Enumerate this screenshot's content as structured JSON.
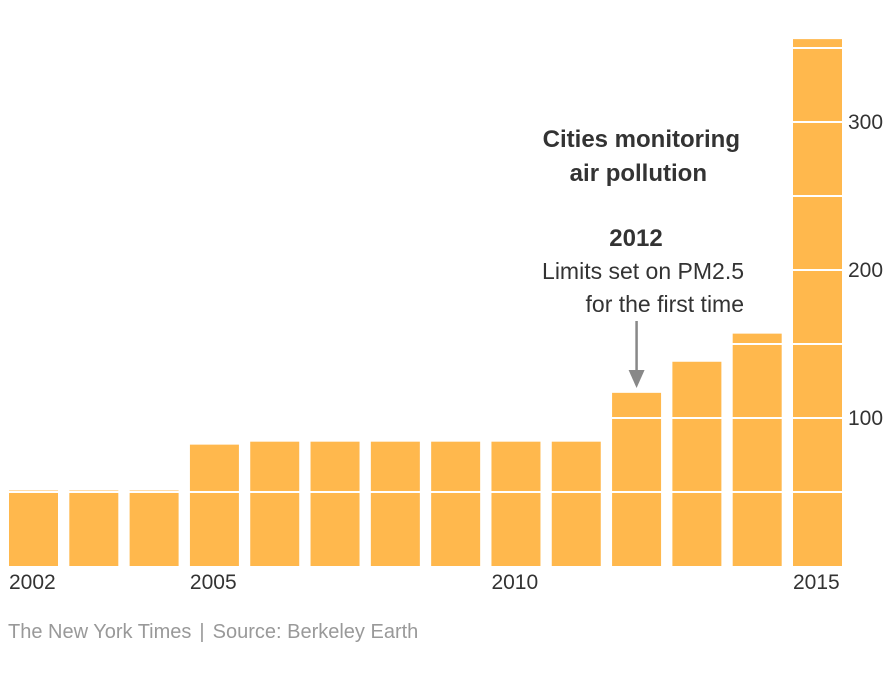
{
  "chart_data": {
    "type": "bar",
    "title": "Cities monitoring air pollution",
    "title_lines": [
      "Cities monitoring",
      "air pollution"
    ],
    "categories": [
      "2002",
      "2003",
      "2004",
      "2005",
      "2006",
      "2007",
      "2008",
      "2009",
      "2010",
      "2011",
      "2012",
      "2013",
      "2014",
      "2015"
    ],
    "values": [
      51,
      51,
      51,
      82,
      84,
      84,
      84,
      84,
      84,
      84,
      117,
      138,
      157,
      356
    ],
    "xtick_labels": [
      {
        "category": "2002",
        "label": "2002"
      },
      {
        "category": "2005",
        "label": "2005"
      },
      {
        "category": "2010",
        "label": "2010"
      },
      {
        "category": "2015",
        "label": "2015"
      }
    ],
    "yticks": [
      100,
      200,
      300
    ],
    "gridlines": [
      50,
      100,
      150,
      200,
      250,
      300,
      350
    ],
    "ylim": [
      0,
      356
    ],
    "xlabel": "",
    "ylabel": "",
    "grid": true,
    "bar_color": "#FFB84D",
    "annotation": {
      "category": "2012",
      "year": "2012",
      "lines": [
        "Limits set on PM2.5",
        "for the first time"
      ],
      "arrow_color": "#888888"
    }
  },
  "footer": {
    "credit": "The New York Times",
    "separator": "|",
    "source": "Source: Berkeley Earth"
  }
}
